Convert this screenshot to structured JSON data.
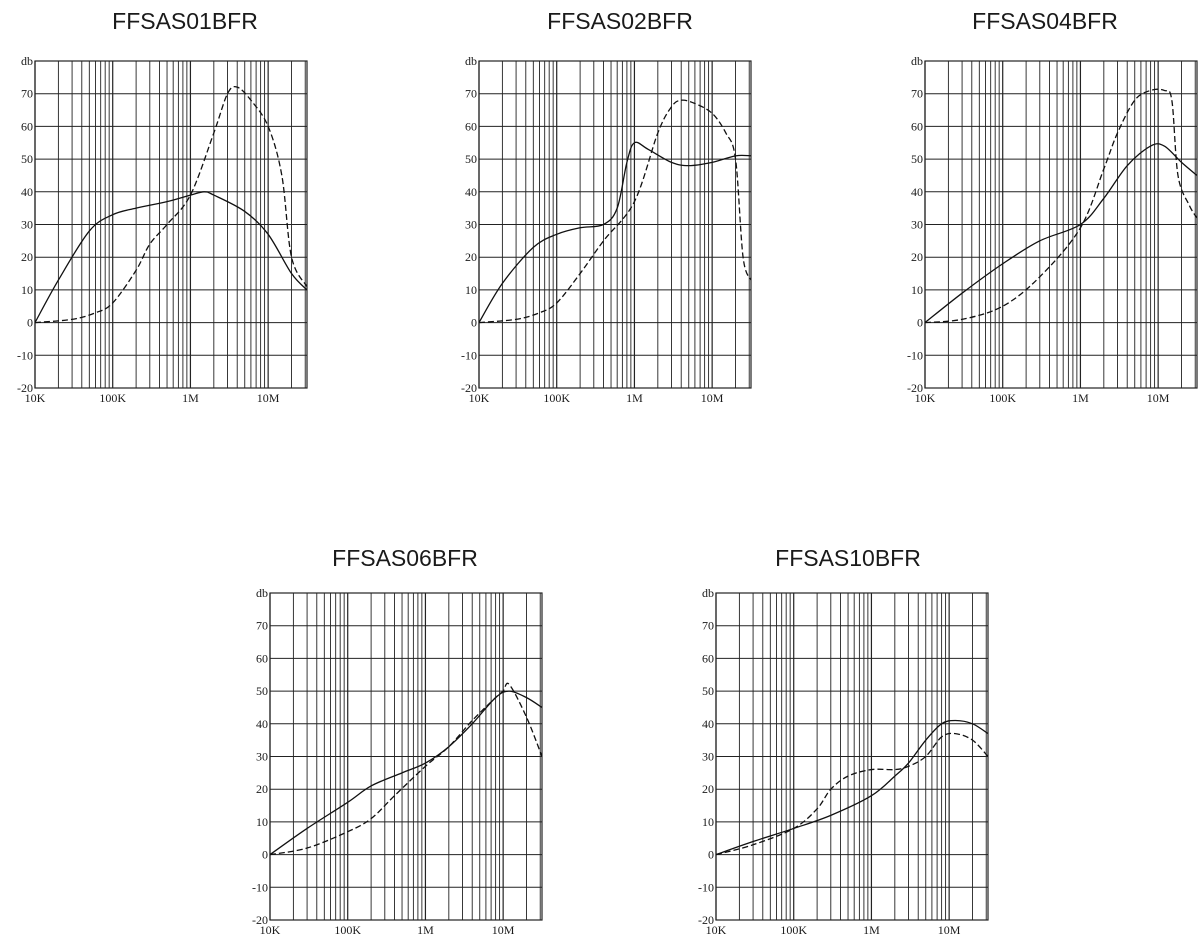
{
  "chart_data": [
    {
      "type": "line",
      "title": "FFSAS01BFR",
      "ylabel": "db",
      "xscale": "log",
      "xlim": [
        10000,
        31622776
      ],
      "ylim": [
        -20,
        80
      ],
      "x_tick_labels": [
        "10K",
        "100K",
        "1M",
        "10M"
      ],
      "y_tick_labels": [
        "70",
        "60",
        "50",
        "40",
        "30",
        "20",
        "10",
        "0",
        "-10",
        "-20"
      ],
      "grid": true,
      "series": [
        {
          "style": "solid",
          "x": [
            10000,
            20000,
            50000,
            100000,
            200000,
            500000,
            1000000,
            1500000,
            2000000,
            5000000,
            10000000,
            20000000,
            31622776
          ],
          "y": [
            0,
            13,
            28,
            33,
            35,
            37,
            39,
            40,
            39,
            34,
            27,
            15,
            10
          ]
        },
        {
          "style": "dashed",
          "x": [
            10000,
            30000,
            60000,
            100000,
            200000,
            300000,
            500000,
            1000000,
            2000000,
            3000000,
            4000000,
            6000000,
            10000000,
            15000000,
            20000000,
            31622776
          ],
          "y": [
            0,
            1,
            3,
            6,
            16,
            24,
            30,
            39,
            58,
            70,
            72,
            68,
            60,
            45,
            20,
            11
          ]
        }
      ]
    },
    {
      "type": "line",
      "title": "FFSAS02BFR",
      "ylabel": "db",
      "xscale": "log",
      "xlim": [
        10000,
        31622776
      ],
      "ylim": [
        -20,
        80
      ],
      "x_tick_labels": [
        "10K",
        "100K",
        "1M",
        "10M"
      ],
      "y_tick_labels": [
        "70",
        "60",
        "50",
        "40",
        "30",
        "20",
        "10",
        "0",
        "-10",
        "-20"
      ],
      "grid": true,
      "series": [
        {
          "style": "solid",
          "x": [
            10000,
            20000,
            50000,
            100000,
            200000,
            400000,
            600000,
            800000,
            1000000,
            1500000,
            3000000,
            5000000,
            10000000,
            20000000,
            31622776
          ],
          "y": [
            0,
            12,
            23,
            27,
            29,
            30,
            35,
            49,
            55,
            53,
            49,
            48,
            49,
            51,
            51
          ]
        },
        {
          "style": "dashed",
          "x": [
            10000,
            30000,
            60000,
            100000,
            200000,
            400000,
            1000000,
            2000000,
            3000000,
            4000000,
            6000000,
            10000000,
            15000000,
            20000000,
            25000000,
            31622776
          ],
          "y": [
            0,
            1,
            3,
            6,
            15,
            25,
            37,
            58,
            66,
            68,
            67,
            64,
            58,
            50,
            20,
            13
          ]
        }
      ]
    },
    {
      "type": "line",
      "title": "FFSAS04BFR",
      "ylabel": "db",
      "xscale": "log",
      "xlim": [
        10000,
        31622776
      ],
      "ylim": [
        -20,
        80
      ],
      "x_tick_labels": [
        "10K",
        "100K",
        "1M",
        "10M"
      ],
      "y_tick_labels": [
        "70",
        "60",
        "50",
        "40",
        "30",
        "20",
        "10",
        "0",
        "-10",
        "-20"
      ],
      "grid": true,
      "series": [
        {
          "style": "solid",
          "x": [
            10000,
            30000,
            100000,
            300000,
            1000000,
            2000000,
            4000000,
            8000000,
            12000000,
            20000000,
            31622776
          ],
          "y": [
            0,
            9,
            18,
            25,
            30,
            38,
            48,
            54,
            54,
            49,
            45
          ]
        },
        {
          "style": "dashed",
          "x": [
            10000,
            30000,
            100000,
            300000,
            1000000,
            2000000,
            3000000,
            5000000,
            8000000,
            12000000,
            15000000,
            18000000,
            25000000,
            31622776
          ],
          "y": [
            0,
            1,
            5,
            14,
            29,
            47,
            58,
            68,
            71,
            71,
            68,
            45,
            36,
            32
          ]
        }
      ]
    },
    {
      "type": "line",
      "title": "FFSAS06BFR",
      "ylabel": "db",
      "xscale": "log",
      "xlim": [
        10000,
        31622776
      ],
      "ylim": [
        -20,
        80
      ],
      "x_tick_labels": [
        "10K",
        "100K",
        "1M",
        "10M"
      ],
      "y_tick_labels": [
        "70",
        "60",
        "50",
        "40",
        "30",
        "20",
        "10",
        "0",
        "-10",
        "-20"
      ],
      "grid": true,
      "series": [
        {
          "style": "solid",
          "x": [
            10000,
            30000,
            100000,
            200000,
            500000,
            1000000,
            2000000,
            4000000,
            8000000,
            12000000,
            20000000,
            31622776
          ],
          "y": [
            0,
            8,
            16,
            21,
            25,
            28,
            33,
            40,
            48,
            50,
            48,
            45
          ]
        },
        {
          "style": "dashed",
          "x": [
            10000,
            30000,
            100000,
            200000,
            400000,
            1000000,
            2000000,
            4000000,
            8000000,
            10000000,
            12000000,
            20000000,
            31622776
          ],
          "y": [
            0,
            2,
            7,
            11,
            18,
            27,
            33,
            41,
            48,
            50,
            52,
            42,
            30
          ]
        }
      ]
    },
    {
      "type": "line",
      "title": "FFSAS10BFR",
      "ylabel": "db",
      "xscale": "log",
      "xlim": [
        10000,
        31622776
      ],
      "ylim": [
        -20,
        80
      ],
      "x_tick_labels": [
        "10K",
        "100K",
        "1M",
        "10M"
      ],
      "y_tick_labels": [
        "70",
        "60",
        "50",
        "40",
        "30",
        "20",
        "10",
        "0",
        "-10",
        "-20"
      ],
      "grid": true,
      "series": [
        {
          "style": "solid",
          "x": [
            10000,
            30000,
            100000,
            300000,
            1000000,
            2000000,
            3000000,
            5000000,
            8000000,
            12000000,
            20000000,
            31622776
          ],
          "y": [
            0,
            4,
            8,
            12,
            18,
            24,
            28,
            35,
            40,
            41,
            40,
            37
          ]
        },
        {
          "style": "dashed",
          "x": [
            10000,
            30000,
            100000,
            200000,
            300000,
            500000,
            1000000,
            2000000,
            3000000,
            5000000,
            8000000,
            12000000,
            20000000,
            31622776
          ],
          "y": [
            0,
            3,
            8,
            14,
            20,
            24,
            26,
            26,
            27,
            30,
            36,
            37,
            35,
            30
          ]
        }
      ]
    }
  ]
}
